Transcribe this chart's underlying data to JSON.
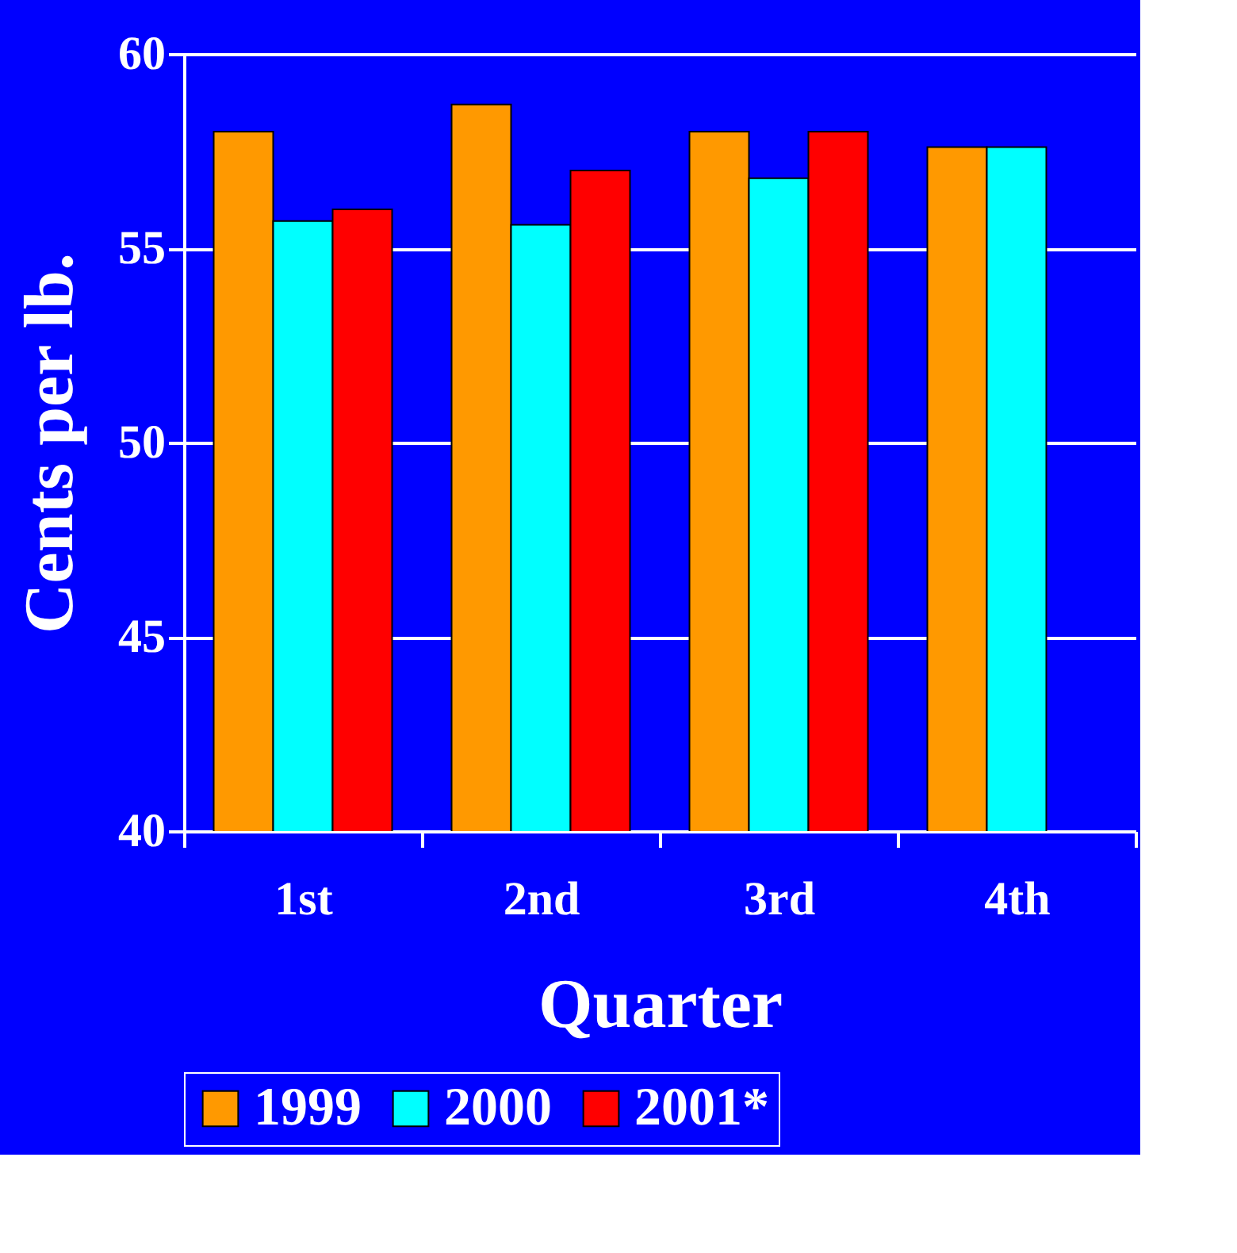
{
  "chart_data": {
    "type": "bar",
    "xlabel": "Quarter",
    "ylabel": "Cents per lb.",
    "categories": [
      "1st",
      "2nd",
      "3rd",
      "4th"
    ],
    "series": [
      {
        "name": "1999",
        "color": "#ff9900",
        "values": [
          58.0,
          58.7,
          58.0,
          57.6
        ]
      },
      {
        "name": "2000",
        "color": "#00ffff",
        "values": [
          55.7,
          55.6,
          56.8,
          57.6
        ]
      },
      {
        "name": "2001*",
        "color": "#ff0000",
        "values": [
          56.0,
          57.0,
          58.0,
          null
        ]
      }
    ],
    "ylim": [
      40,
      60
    ],
    "yticks": [
      40,
      45,
      50,
      55,
      60
    ],
    "grid": "y",
    "legend": "bottom"
  }
}
